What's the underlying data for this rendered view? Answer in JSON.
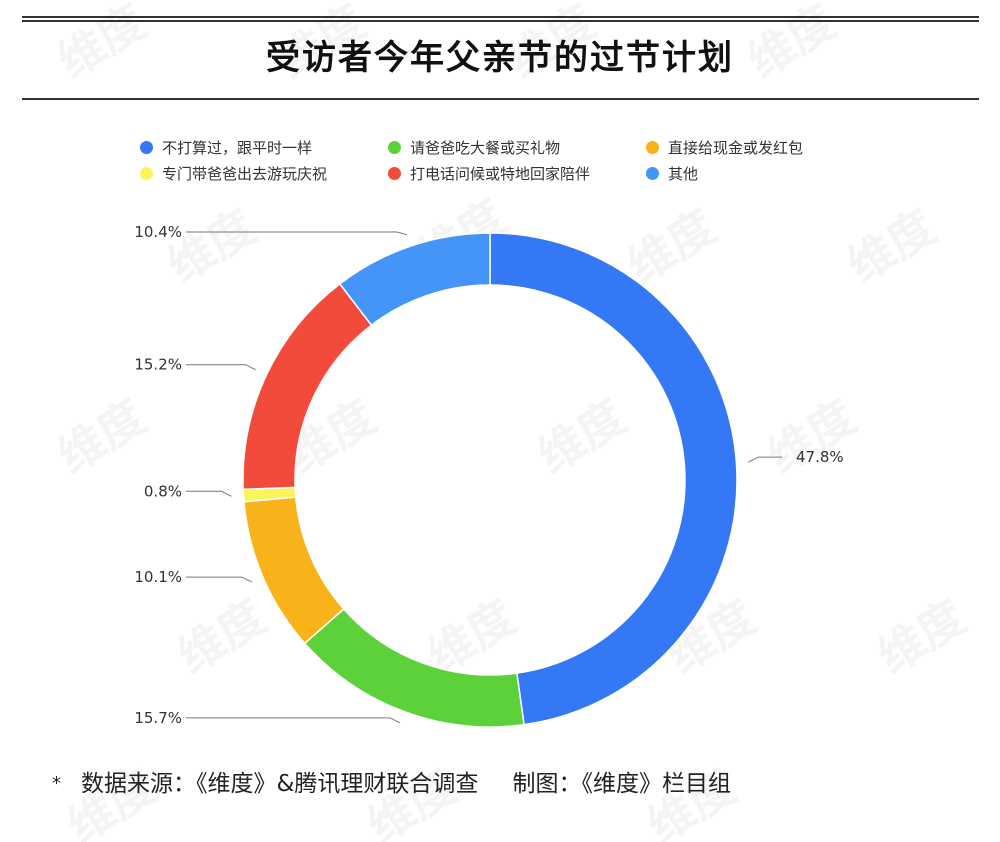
{
  "title": "受访者今年父亲节的过节计划",
  "footer": {
    "star": "*",
    "source": "数据来源：《维度》&腾讯理财联合调查",
    "credit": "制图：《维度》栏目组"
  },
  "watermark": "维度",
  "chart_data": {
    "type": "pie",
    "style": "donut",
    "slices": [
      {
        "label": "不打算过，跟平时一样",
        "value": 47.8,
        "value_label": "47.8%",
        "color": "#3478F6"
      },
      {
        "label": "请爸爸吃大餐或买礼物",
        "value": 15.7,
        "value_label": "15.7%",
        "color": "#5CD13A"
      },
      {
        "label": "直接给现金或发红包",
        "value": 10.1,
        "value_label": "10.1%",
        "color": "#F8B31B"
      },
      {
        "label": "专门带爸爸出去游玩庆祝",
        "value": 0.8,
        "value_label": "0.8%",
        "color": "#FBF45B"
      },
      {
        "label": "打电话问候或特地回家陪伴",
        "value": 15.2,
        "value_label": "15.2%",
        "color": "#F24A3B"
      },
      {
        "label": "其他",
        "value": 10.4,
        "value_label": "10.4%",
        "color": "#4595F8"
      }
    ],
    "legend_order": [
      0,
      1,
      2,
      3,
      4,
      5
    ],
    "legend_position": "top"
  }
}
